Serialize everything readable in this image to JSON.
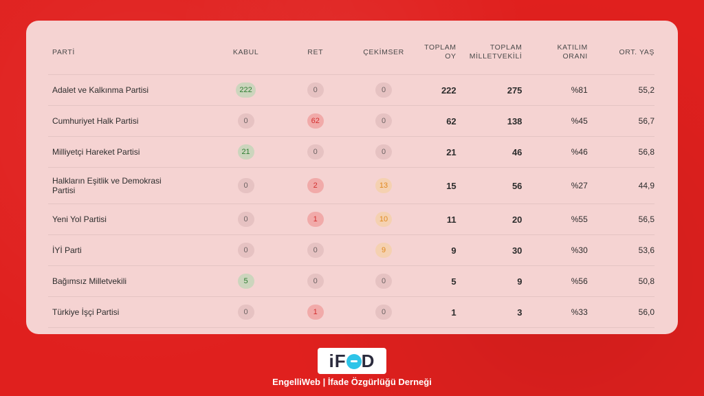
{
  "table": {
    "headers": {
      "parti": "PARTİ",
      "kabul": "KABUL",
      "ret": "RET",
      "cekimser": "ÇEKİMSER",
      "toplam_oy": "TOPLAM OY",
      "toplam_mv_1": "TOPLAM",
      "toplam_mv_2": "MİLLETVEKİLİ",
      "katilim_1": "KATILIM",
      "katilim_2": "ORANI",
      "ort_yas": "ORT. YAŞ"
    },
    "rows": [
      {
        "party": "Adalet ve Kalkınma Partisi",
        "party2": "",
        "kabul": "222",
        "ret": "0",
        "cekimser": "0",
        "toplam_oy": "222",
        "toplam_mv": "275",
        "katilim": "%81",
        "yas": "55,2"
      },
      {
        "party": "Cumhuriyet Halk Partisi",
        "party2": "",
        "kabul": "0",
        "ret": "62",
        "cekimser": "0",
        "toplam_oy": "62",
        "toplam_mv": "138",
        "katilim": "%45",
        "yas": "56,7"
      },
      {
        "party": "Milliyetçi Hareket Partisi",
        "party2": "",
        "kabul": "21",
        "ret": "0",
        "cekimser": "0",
        "toplam_oy": "21",
        "toplam_mv": "46",
        "katilim": "%46",
        "yas": "56,8"
      },
      {
        "party": "Halkların Eşitlik ve Demokrasi",
        "party2": "Partisi",
        "kabul": "0",
        "ret": "2",
        "cekimser": "13",
        "toplam_oy": "15",
        "toplam_mv": "56",
        "katilim": "%27",
        "yas": "44,9"
      },
      {
        "party": "Yeni Yol Partisi",
        "party2": "",
        "kabul": "0",
        "ret": "1",
        "cekimser": "10",
        "toplam_oy": "11",
        "toplam_mv": "20",
        "katilim": "%55",
        "yas": "56,5"
      },
      {
        "party": "İYİ Parti",
        "party2": "",
        "kabul": "0",
        "ret": "0",
        "cekimser": "9",
        "toplam_oy": "9",
        "toplam_mv": "30",
        "katilim": "%30",
        "yas": "53,6"
      },
      {
        "party": "Bağımsız Milletvekili",
        "party2": "",
        "kabul": "5",
        "ret": "0",
        "cekimser": "0",
        "toplam_oy": "5",
        "toplam_mv": "9",
        "katilim": "%56",
        "yas": "50,8"
      },
      {
        "party": "Türkiye İşçi Partisi",
        "party2": "",
        "kabul": "0",
        "ret": "1",
        "cekimser": "0",
        "toplam_oy": "1",
        "toplam_mv": "3",
        "katilim": "%33",
        "yas": "56,0"
      }
    ]
  },
  "footer": {
    "logo_text_1": "iF",
    "logo_text_2": "D",
    "caption": "EngelliWeb | İfade Özgürlüğü Derneği"
  },
  "colors": {
    "background": "#e0201e",
    "card": "#f5d3d2",
    "kabul_accent": "#2e7d32",
    "ret_accent": "#d32f2f",
    "cekimser_accent": "#e0891e",
    "logo_dot": "#2ec4e8"
  }
}
